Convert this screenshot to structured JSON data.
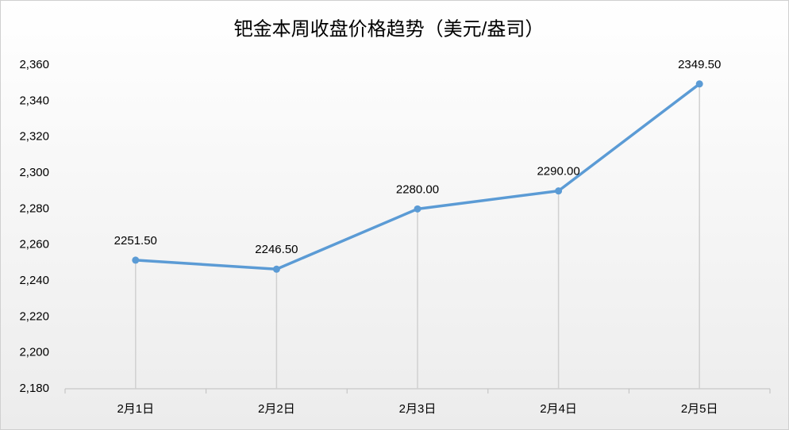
{
  "chart_data": {
    "type": "line",
    "title": "钯金本周收盘价格趋势（美元/盎司）",
    "categories": [
      "2月1日",
      "2月2日",
      "2月3日",
      "2月4日",
      "2月5日"
    ],
    "values": [
      2251.5,
      2246.5,
      2280,
      2290,
      2349.5
    ],
    "value_labels": [
      "2251.50",
      "2246.50",
      "2280.00",
      "2290.00",
      "2349.50"
    ],
    "color": "#5b9bd5",
    "ylim": [
      2180,
      2360
    ],
    "yticks": [
      {
        "value": 2180,
        "label": "2,180"
      },
      {
        "value": 2200,
        "label": "2,200"
      },
      {
        "value": 2220,
        "label": "2,220"
      },
      {
        "value": 2240,
        "label": "2,240"
      },
      {
        "value": 2260,
        "label": "2,260"
      },
      {
        "value": 2280,
        "label": "2,280"
      },
      {
        "value": 2300,
        "label": "2,300"
      },
      {
        "value": 2320,
        "label": "2,320"
      },
      {
        "value": 2340,
        "label": "2,340"
      },
      {
        "value": 2360,
        "label": "2,360"
      }
    ],
    "grid": false,
    "drop_lines": true
  }
}
